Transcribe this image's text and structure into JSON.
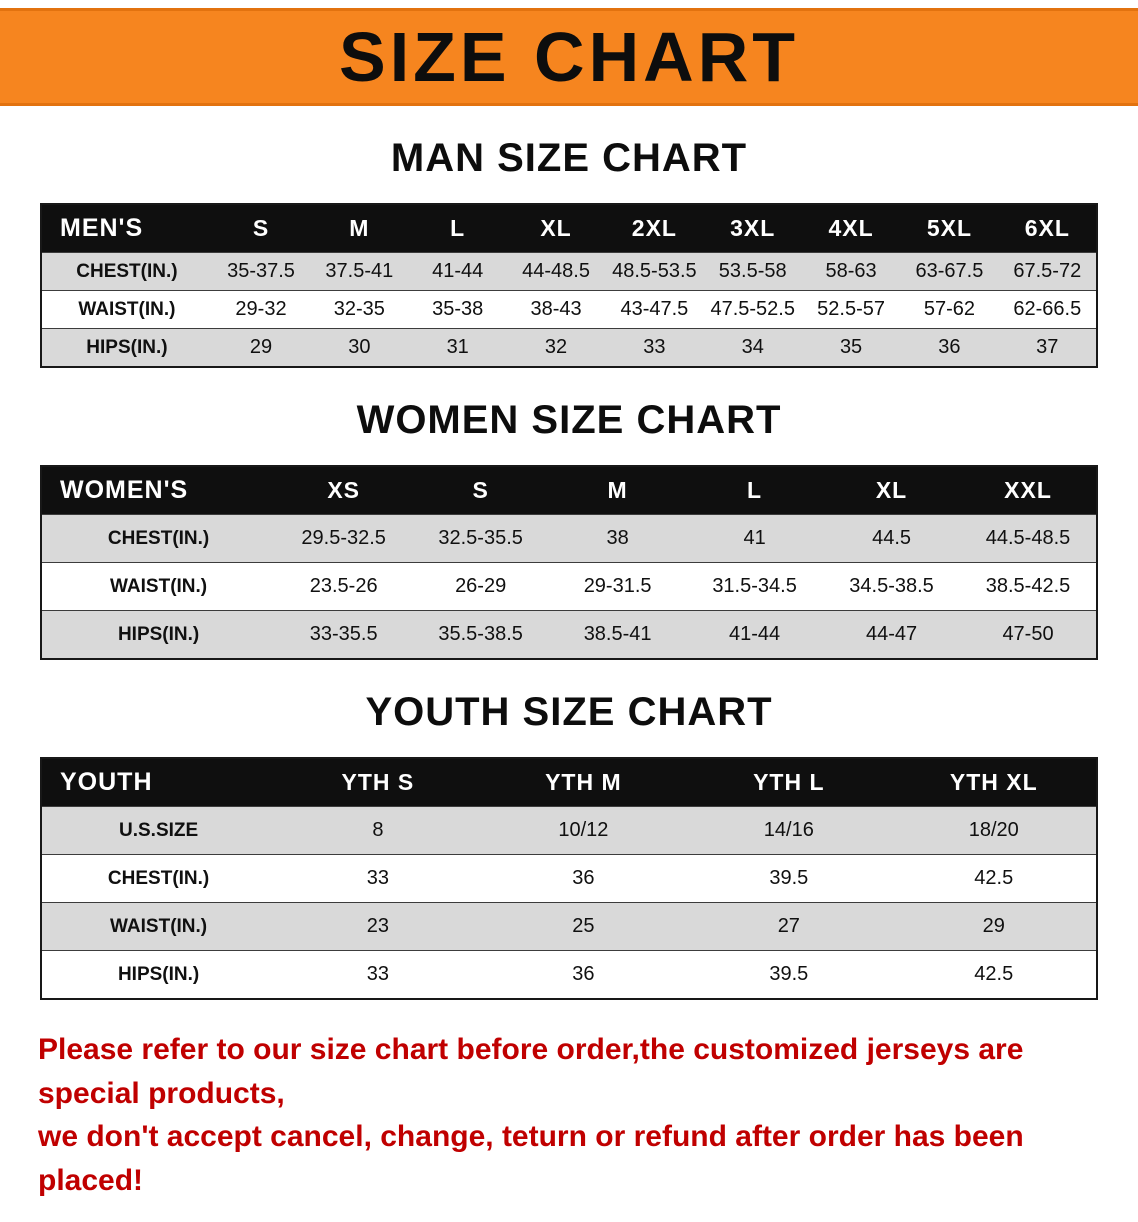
{
  "banner": {
    "title": "SIZE CHART"
  },
  "sections": [
    {
      "heading": "MAN SIZE CHART",
      "table": {
        "header": [
          "MEN'S",
          "S",
          "M",
          "L",
          "XL",
          "2XL",
          "3XL",
          "4XL",
          "5XL",
          "6XL"
        ],
        "rows": [
          [
            "CHEST(IN.)",
            "35-37.5",
            "37.5-41",
            "41-44",
            "44-48.5",
            "48.5-53.5",
            "53.5-58",
            "58-63",
            "63-67.5",
            "67.5-72"
          ],
          [
            "WAIST(IN.)",
            "29-32",
            "32-35",
            "35-38",
            "38-43",
            "43-47.5",
            "47.5-52.5",
            "52.5-57",
            "57-62",
            "62-66.5"
          ],
          [
            "HIPS(IN.)",
            "29",
            "30",
            "31",
            "32",
            "33",
            "34",
            "35",
            "36",
            "37"
          ]
        ]
      }
    },
    {
      "heading": "WOMEN SIZE CHART",
      "table": {
        "header": [
          "WOMEN'S",
          "XS",
          "S",
          "M",
          "L",
          "XL",
          "XXL"
        ],
        "rows": [
          [
            "CHEST(IN.)",
            "29.5-32.5",
            "32.5-35.5",
            "38",
            "41",
            "44.5",
            "44.5-48.5"
          ],
          [
            "WAIST(IN.)",
            "23.5-26",
            "26-29",
            "29-31.5",
            "31.5-34.5",
            "34.5-38.5",
            "38.5-42.5"
          ],
          [
            "HIPS(IN.)",
            "33-35.5",
            "35.5-38.5",
            "38.5-41",
            "41-44",
            "44-47",
            "47-50"
          ]
        ]
      }
    },
    {
      "heading": "YOUTH SIZE CHART",
      "table": {
        "header": [
          "YOUTH",
          "YTH S",
          "YTH M",
          "YTH L",
          "YTH XL"
        ],
        "rows": [
          [
            "U.S.SIZE",
            "8",
            "10/12",
            "14/16",
            "18/20"
          ],
          [
            "CHEST(IN.)",
            "33",
            "36",
            "39.5",
            "42.5"
          ],
          [
            "WAIST(IN.)",
            "23",
            "25",
            "27",
            "29"
          ],
          [
            "HIPS(IN.)",
            "33",
            "36",
            "39.5",
            "42.5"
          ]
        ]
      }
    }
  ],
  "disclaimer": {
    "line1": "Please refer to our size chart before order,the customized jerseys are special products,",
    "line2": "we don't accept cancel, change, teturn or refund after order has been placed!"
  },
  "colors": {
    "banner_bg": "#F6851F",
    "header_bg": "#0f0f0f",
    "row_alt_bg": "#d9d9d9",
    "disclaimer_color": "#c00000"
  }
}
